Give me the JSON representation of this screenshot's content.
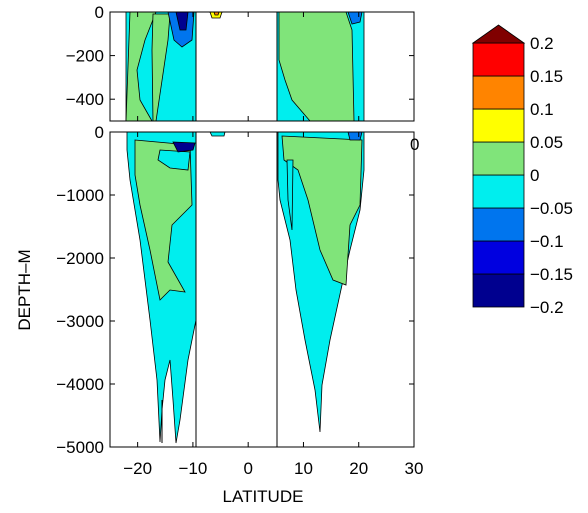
{
  "chart_data": {
    "type": "contour",
    "xlabel": "LATITUDE",
    "ylabel": "DEPTH–M",
    "x_ticks": [
      "−20",
      "−10",
      "0",
      "10",
      "20",
      "30"
    ],
    "xlim": [
      -25,
      30
    ],
    "panels": [
      {
        "name": "upper",
        "ylim": [
          -500,
          0
        ],
        "y_ticks": [
          "0",
          "−200",
          "−400"
        ]
      },
      {
        "name": "lower",
        "ylim": [
          -5000,
          0
        ],
        "y_ticks": [
          "0",
          "−1000",
          "−2000",
          "−3000",
          "−4000",
          "−5000"
        ]
      }
    ],
    "clipped_label": "0",
    "colorbar": {
      "levels": [
        -0.2,
        -0.15,
        -0.1,
        -0.05,
        0,
        0.05,
        0.1,
        0.15,
        0.2
      ],
      "labels": [
        "0.2",
        "0.15",
        "0.1",
        "0.05",
        "0",
        "−0.05",
        "−0.1",
        "−0.15",
        "−0.2"
      ],
      "colors": [
        "#00008f",
        "#0000e0",
        "#0075ee",
        "#00eeee",
        "#80e47a",
        "#ffff00",
        "#ff8400",
        "#ff0000",
        "#800000"
      ]
    }
  }
}
